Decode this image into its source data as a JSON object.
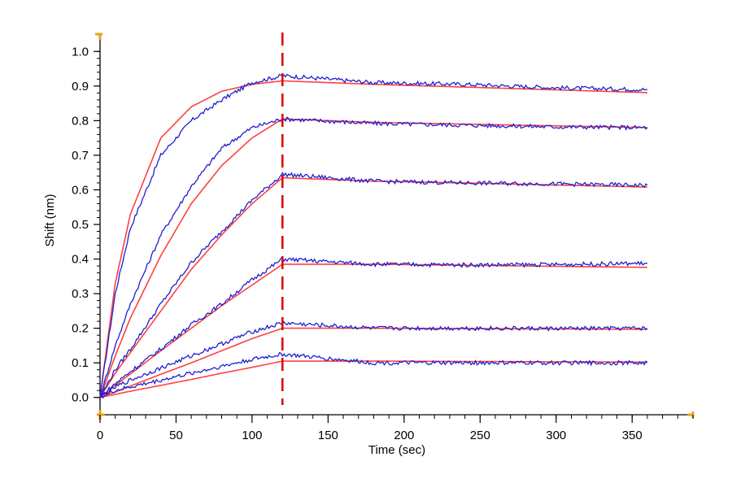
{
  "chart_data": {
    "type": "line",
    "title": "",
    "xlabel": "Time (sec)",
    "ylabel": "Shift (nm)",
    "xlim": [
      0,
      390
    ],
    "ylim": [
      -0.05,
      1.05
    ],
    "x_ticks": [
      0,
      50,
      100,
      150,
      200,
      250,
      300,
      350
    ],
    "y_ticks": [
      0.0,
      0.1,
      0.2,
      0.3,
      0.4,
      0.5,
      0.6,
      0.7,
      0.8,
      0.9,
      1.0
    ],
    "x_tick_labels": [
      "0",
      "50",
      "100",
      "150",
      "200",
      "250",
      "300",
      "350"
    ],
    "y_tick_labels": [
      "0.0",
      "0.1",
      "0.2",
      "0.3",
      "0.4",
      "0.5",
      "0.6",
      "0.7",
      "0.8",
      "0.9",
      "1.0"
    ],
    "x_minor_step": 10,
    "y_minor_step": 0.02,
    "grid": false,
    "marker_line": {
      "x": 120,
      "color": "#dd0000",
      "style": "dashed"
    },
    "colors": {
      "measured": "#1f1fd0",
      "fit": "#ff4040",
      "axis_end_marker": "#e8a020"
    },
    "association_end": 120,
    "dissociation_end": 360,
    "series": [
      {
        "measured": {
          "x": [
            0,
            10,
            20,
            40,
            60,
            80,
            100,
            120,
            180,
            240,
            300,
            360
          ],
          "y": [
            0.0,
            0.3,
            0.49,
            0.7,
            0.8,
            0.86,
            0.91,
            0.93,
            0.91,
            0.905,
            0.895,
            0.89
          ]
        },
        "fit": {
          "x": [
            0,
            10,
            20,
            40,
            60,
            80,
            100,
            120,
            180,
            240,
            300,
            360
          ],
          "y": [
            0.0,
            0.33,
            0.53,
            0.75,
            0.84,
            0.885,
            0.905,
            0.915,
            0.905,
            0.897,
            0.889,
            0.881
          ]
        }
      },
      {
        "measured": {
          "x": [
            0,
            10,
            20,
            40,
            60,
            80,
            100,
            120,
            180,
            240,
            300,
            360
          ],
          "y": [
            0.0,
            0.15,
            0.27,
            0.47,
            0.61,
            0.72,
            0.78,
            0.805,
            0.792,
            0.787,
            0.782,
            0.78
          ]
        },
        "fit": {
          "x": [
            0,
            10,
            20,
            40,
            60,
            80,
            100,
            120,
            180,
            240,
            300,
            360
          ],
          "y": [
            0.0,
            0.12,
            0.23,
            0.41,
            0.56,
            0.67,
            0.75,
            0.805,
            0.795,
            0.79,
            0.785,
            0.78
          ]
        }
      },
      {
        "measured": {
          "x": [
            0,
            10,
            20,
            40,
            60,
            80,
            100,
            120,
            180,
            240,
            300,
            360
          ],
          "y": [
            0.0,
            0.08,
            0.14,
            0.27,
            0.39,
            0.48,
            0.57,
            0.645,
            0.625,
            0.62,
            0.617,
            0.613
          ]
        },
        "fit": {
          "x": [
            0,
            10,
            20,
            40,
            60,
            80,
            100,
            120,
            180,
            240,
            300,
            360
          ],
          "y": [
            0.0,
            0.07,
            0.13,
            0.25,
            0.37,
            0.47,
            0.56,
            0.635,
            0.625,
            0.62,
            0.614,
            0.608
          ]
        }
      },
      {
        "measured": {
          "x": [
            0,
            10,
            20,
            40,
            60,
            80,
            100,
            120,
            180,
            240,
            300,
            360
          ],
          "y": [
            0.0,
            0.04,
            0.075,
            0.14,
            0.21,
            0.27,
            0.34,
            0.4,
            0.385,
            0.383,
            0.384,
            0.388
          ]
        },
        "fit": {
          "x": [
            0,
            10,
            20,
            40,
            60,
            80,
            100,
            120,
            180,
            240,
            300,
            360
          ],
          "y": [
            0.0,
            0.035,
            0.068,
            0.135,
            0.2,
            0.265,
            0.325,
            0.385,
            0.385,
            0.382,
            0.379,
            0.376
          ]
        }
      },
      {
        "measured": {
          "x": [
            0,
            10,
            20,
            40,
            60,
            80,
            100,
            120,
            180,
            240,
            300,
            360
          ],
          "y": [
            0.0,
            0.03,
            0.05,
            0.085,
            0.12,
            0.155,
            0.19,
            0.215,
            0.2,
            0.2,
            0.199,
            0.2
          ]
        },
        "fit": {
          "x": [
            0,
            10,
            20,
            40,
            60,
            80,
            100,
            120,
            180,
            240,
            300,
            360
          ],
          "y": [
            0.0,
            0.016,
            0.033,
            0.067,
            0.1,
            0.135,
            0.17,
            0.2,
            0.2,
            0.199,
            0.198,
            0.197
          ]
        }
      },
      {
        "measured": {
          "x": [
            0,
            10,
            20,
            40,
            60,
            80,
            100,
            120,
            180,
            240,
            300,
            360
          ],
          "y": [
            0.0,
            0.02,
            0.03,
            0.05,
            0.07,
            0.09,
            0.11,
            0.125,
            0.1,
            0.1,
            0.1,
            0.1
          ]
        },
        "fit": {
          "x": [
            0,
            10,
            20,
            40,
            60,
            80,
            100,
            120,
            180,
            240,
            300,
            360
          ],
          "y": [
            0.0,
            0.009,
            0.018,
            0.035,
            0.052,
            0.07,
            0.087,
            0.105,
            0.105,
            0.104,
            0.103,
            0.102
          ]
        }
      }
    ]
  }
}
